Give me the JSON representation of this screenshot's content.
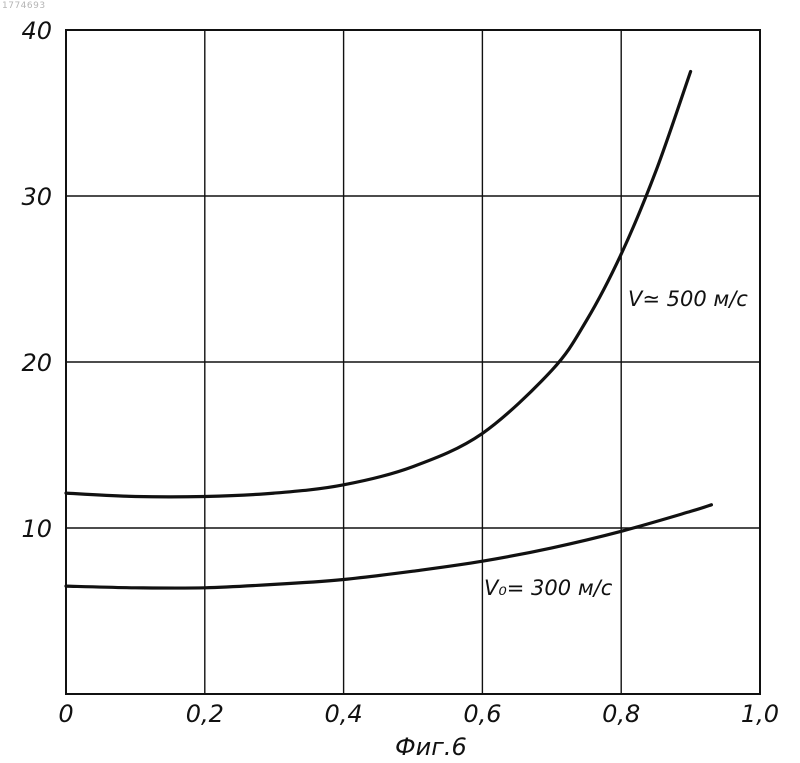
{
  "doc_id": "1774693",
  "caption": "Фиг.6",
  "chart_data": {
    "type": "line",
    "title": "",
    "xlabel": "",
    "ylabel": "",
    "xlim": [
      0,
      1.0
    ],
    "ylim": [
      0,
      40
    ],
    "grid": true,
    "x_ticks": [
      "0",
      "0,2",
      "0,4",
      "0,6",
      "0,8",
      "1,0"
    ],
    "y_ticks": [
      "10",
      "20",
      "30",
      "40"
    ],
    "series": [
      {
        "name": "V≃ 500 м/с",
        "x": [
          0,
          0.1,
          0.2,
          0.3,
          0.4,
          0.5,
          0.6,
          0.7,
          0.75,
          0.8,
          0.85,
          0.9
        ],
        "y": [
          12.1,
          11.9,
          11.9,
          12.1,
          12.6,
          13.7,
          15.7,
          19.5,
          22.5,
          26.5,
          31.5,
          37.5
        ]
      },
      {
        "name": "V₀= 300 м/с",
        "x": [
          0,
          0.1,
          0.2,
          0.3,
          0.4,
          0.5,
          0.6,
          0.7,
          0.8,
          0.9,
          0.93
        ],
        "y": [
          6.5,
          6.4,
          6.4,
          6.6,
          6.9,
          7.4,
          8.0,
          8.8,
          9.8,
          11.0,
          11.4
        ]
      }
    ]
  }
}
